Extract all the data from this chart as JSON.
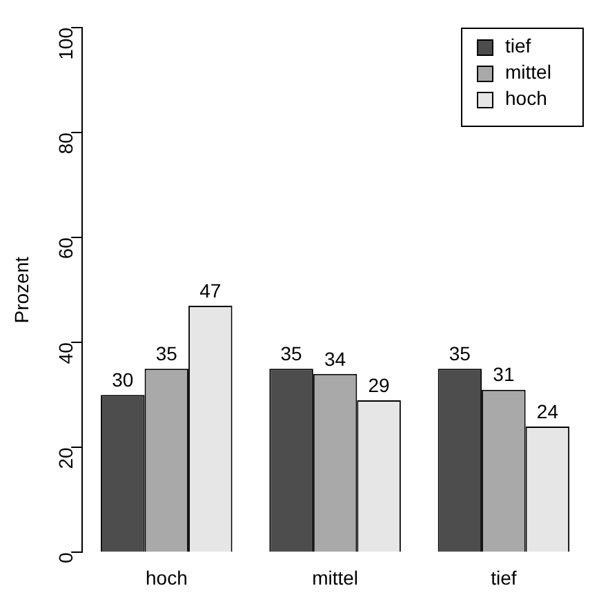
{
  "chart_data": {
    "type": "bar",
    "ylabel": "Prozent",
    "categories": [
      "hoch",
      "mittel",
      "tief"
    ],
    "series": [
      {
        "name": "tief",
        "color": "#4d4d4d",
        "values": [
          30,
          35,
          35
        ]
      },
      {
        "name": "mittel",
        "color": "#a9a9a9",
        "values": [
          35,
          34,
          31
        ]
      },
      {
        "name": "hoch",
        "color": "#e6e6e6",
        "values": [
          47,
          29,
          24
        ]
      }
    ],
    "ylim": [
      0,
      100
    ],
    "yticks": [
      0,
      20,
      40,
      60,
      80,
      100
    ],
    "grid": false,
    "legend": "top right",
    "data_labels": true
  }
}
